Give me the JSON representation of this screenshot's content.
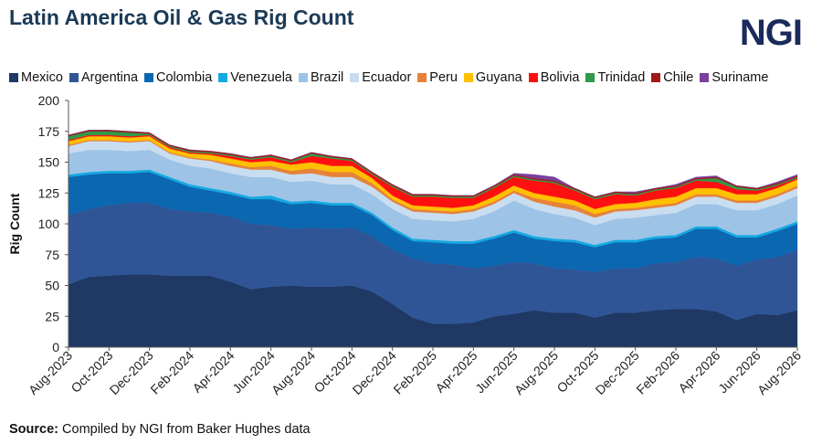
{
  "header": {
    "title": "Latin America Oil & Gas Rig Count",
    "logo": "NGI"
  },
  "source": {
    "label": "Source:",
    "text": "Compiled by NGI from Baker Hughes data"
  },
  "chart_data": {
    "type": "area",
    "stacked": true,
    "title": "Latin America Oil & Gas Rig Count",
    "xlabel": "",
    "ylabel": "Rig Count",
    "ylim": [
      0,
      200
    ],
    "yticks": [
      0,
      25,
      50,
      75,
      100,
      125,
      150,
      175,
      200
    ],
    "grid": false,
    "legend_position": "top",
    "x": [
      "Aug-2023",
      "Sep-2023",
      "Oct-2023",
      "Nov-2023",
      "Dec-2023",
      "Jan-2024",
      "Feb-2024",
      "Mar-2024",
      "Apr-2024",
      "May-2024",
      "Jun-2024",
      "Jul-2024",
      "Aug-2024",
      "Sep-2024",
      "Oct-2024",
      "Nov-2024",
      "Dec-2024",
      "Jan-2025",
      "Feb-2025",
      "Mar-2025",
      "Apr-2025",
      "May-2025",
      "Jun-2025",
      "Jul-2025",
      "Aug-2025",
      "Sep-2025",
      "Oct-2025",
      "Nov-2025",
      "Dec-2025",
      "Jan-2026",
      "Feb-2026",
      "Mar-2026",
      "Apr-2026",
      "May-2026",
      "Jun-2026",
      "Jul-2026",
      "Aug-2026"
    ],
    "xtick_labels": [
      "Aug-2023",
      "Oct-2023",
      "Dec-2023",
      "Feb-2024",
      "Apr-2024",
      "Jun-2024",
      "Aug-2024",
      "Oct-2024",
      "Dec-2024",
      "Feb-2025",
      "Apr-2025",
      "Jun-2025",
      "Aug-2025",
      "Oct-2025",
      "Dec-2025",
      "Feb-2026",
      "Apr-2026",
      "Jun-2026",
      "Aug-2026"
    ],
    "series": [
      {
        "name": "Mexico",
        "color": "#1f3864",
        "values": [
          51,
          57,
          58,
          59,
          59,
          58,
          58,
          58,
          53,
          47,
          49,
          50,
          49,
          49,
          50,
          45,
          35,
          24,
          19,
          19,
          20,
          25,
          27,
          30,
          28,
          28,
          24,
          28,
          28,
          30,
          31,
          31,
          29,
          22,
          27,
          26,
          30
        ]
      },
      {
        "name": "Argentina",
        "color": "#2f5597",
        "values": [
          56,
          55,
          57,
          58,
          58,
          54,
          52,
          51,
          53,
          53,
          50,
          46,
          48,
          47,
          47,
          45,
          44,
          48,
          49,
          48,
          44,
          41,
          42,
          38,
          36,
          35,
          37,
          36,
          36,
          38,
          38,
          42,
          43,
          44,
          44,
          47,
          49
        ]
      },
      {
        "name": "Colombia",
        "color": "#0c67b1",
        "values": [
          31,
          28,
          26,
          24,
          25,
          24,
          20,
          18,
          18,
          20,
          21,
          20,
          20,
          19,
          18,
          17,
          16,
          14,
          17,
          17,
          20,
          22,
          24,
          20,
          22,
          22,
          20,
          21,
          21,
          20,
          20,
          23,
          24,
          23,
          18,
          21,
          21
        ]
      },
      {
        "name": "Venezuela",
        "color": "#14a9e2",
        "values": [
          2,
          2,
          2,
          2,
          2,
          2,
          2,
          2,
          2,
          2,
          3,
          2,
          2,
          2,
          2,
          2,
          2,
          2,
          2,
          2,
          2,
          2,
          2,
          2,
          2,
          2,
          2,
          2,
          2,
          2,
          2,
          2,
          2,
          2,
          2,
          2,
          2
        ]
      },
      {
        "name": "Brazil",
        "color": "#9dc3e6",
        "values": [
          17,
          18,
          17,
          16,
          16,
          14,
          15,
          16,
          15,
          16,
          15,
          16,
          16,
          15,
          15,
          15,
          15,
          16,
          16,
          16,
          18,
          20,
          24,
          22,
          20,
          18,
          16,
          17,
          18,
          17,
          18,
          18,
          18,
          20,
          20,
          20,
          21
        ]
      },
      {
        "name": "Ecuador",
        "color": "#c9ddf0",
        "values": [
          6,
          7,
          7,
          7,
          7,
          5,
          6,
          6,
          6,
          6,
          6,
          6,
          6,
          6,
          6,
          6,
          6,
          6,
          6,
          6,
          6,
          6,
          6,
          6,
          6,
          6,
          6,
          6,
          6,
          6,
          6,
          6,
          6,
          6,
          6,
          6,
          6
        ]
      },
      {
        "name": "Peru",
        "color": "#e6823a",
        "values": [
          1,
          1,
          1,
          1,
          1,
          1,
          1,
          1,
          2,
          2,
          3,
          3,
          4,
          4,
          4,
          3,
          2,
          2,
          2,
          2,
          2,
          2,
          2,
          3,
          4,
          4,
          3,
          2,
          2,
          2,
          2,
          2,
          2,
          2,
          2,
          2,
          2
        ]
      },
      {
        "name": "Guyana",
        "color": "#ffc000",
        "values": [
          3,
          3,
          3,
          3,
          3,
          3,
          3,
          4,
          4,
          4,
          4,
          5,
          5,
          5,
          5,
          4,
          3,
          3,
          3,
          3,
          3,
          4,
          4,
          4,
          4,
          4,
          4,
          4,
          4,
          5,
          5,
          5,
          5,
          5,
          5,
          5,
          5
        ]
      },
      {
        "name": "Bolivia",
        "color": "#ff1010",
        "values": [
          1,
          1,
          1,
          1,
          1,
          1,
          1,
          1,
          2,
          2,
          3,
          2,
          5,
          6,
          4,
          3,
          7,
          7,
          8,
          8,
          6,
          7,
          7,
          10,
          11,
          8,
          8,
          8,
          6,
          7,
          7,
          6,
          5,
          4,
          3,
          2,
          1
        ]
      },
      {
        "name": "Trinidad",
        "color": "#2e9a4a",
        "values": [
          3,
          3,
          3,
          3,
          1,
          1,
          1,
          1,
          1,
          1,
          1,
          1,
          2,
          1,
          1,
          1,
          1,
          1,
          1,
          1,
          1,
          1,
          1,
          1,
          1,
          1,
          1,
          1,
          1,
          1,
          1,
          1,
          3,
          2,
          1,
          1,
          1
        ]
      },
      {
        "name": "Chile",
        "color": "#a01818",
        "values": [
          1,
          1,
          1,
          1,
          1,
          1,
          1,
          1,
          1,
          1,
          1,
          1,
          1,
          1,
          1,
          1,
          1,
          1,
          1,
          1,
          1,
          1,
          1,
          1,
          1,
          1,
          1,
          1,
          1,
          1,
          1,
          1,
          1,
          1,
          1,
          1,
          1
        ]
      },
      {
        "name": "Suriname",
        "color": "#7b3f9e",
        "values": [
          0,
          0,
          0,
          0,
          0,
          0,
          0,
          0,
          0,
          0,
          0,
          0,
          0,
          0,
          0,
          0,
          0,
          0,
          0,
          0,
          0,
          0,
          1,
          3,
          3,
          0,
          0,
          0,
          1,
          0,
          1,
          1,
          1,
          0,
          0,
          1,
          1
        ]
      }
    ]
  }
}
